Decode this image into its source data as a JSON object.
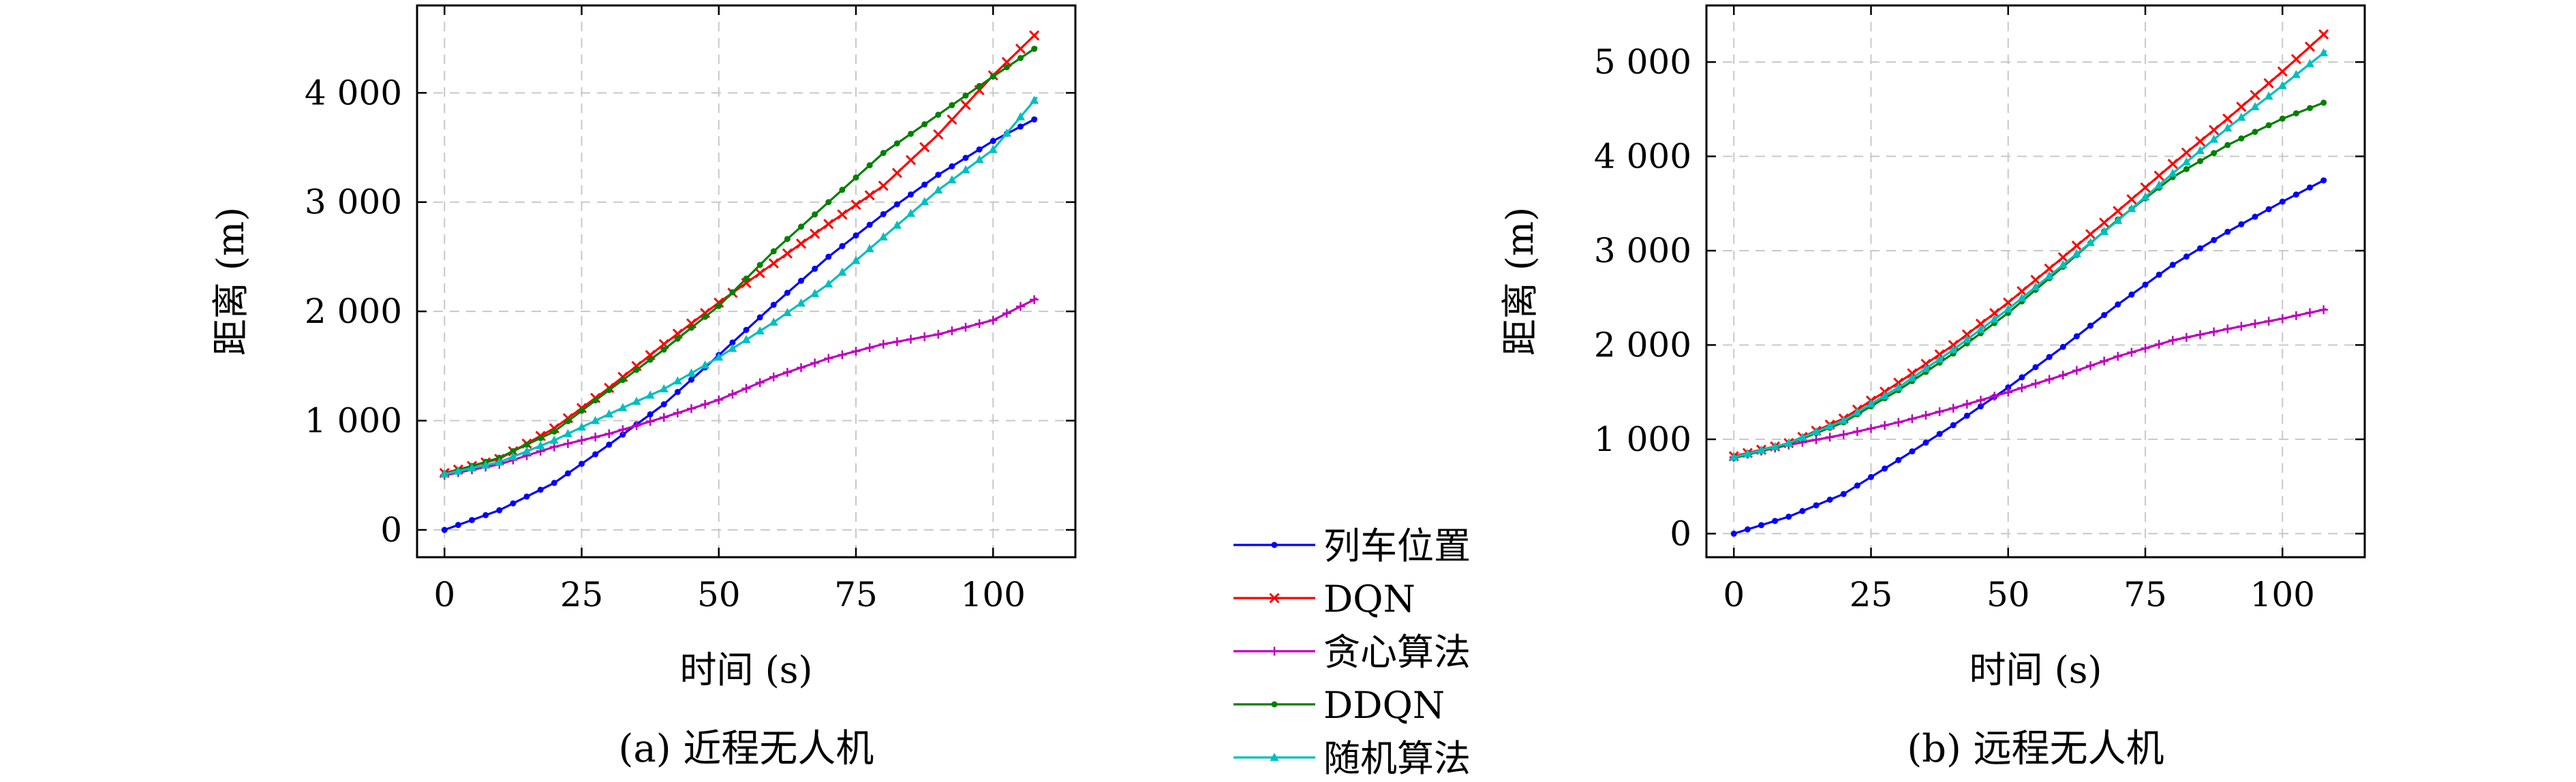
{
  "legend": [
    {
      "name": "列车位置",
      "color": "#0000ff",
      "marker": "dot"
    },
    {
      "name": "DQN",
      "color": "#ff0000",
      "marker": "x"
    },
    {
      "name": "贪心算法",
      "color": "#bf00bf",
      "marker": "plus"
    },
    {
      "name": "DDQN",
      "color": "#008000",
      "marker": "dot"
    },
    {
      "name": "随机算法",
      "color": "#00bfbf",
      "marker": "triangle"
    }
  ],
  "chart_data": [
    {
      "type": "line",
      "caption": "(a) 近程无人机",
      "xlabel": "时间 (s)",
      "ylabel": "距离 (m)",
      "xlim": [
        -5,
        115
      ],
      "ylim": [
        -250,
        4800
      ],
      "xticks": [
        0,
        25,
        50,
        75,
        100
      ],
      "xtick_labels": [
        "0",
        "25",
        "50",
        "75",
        "100"
      ],
      "yticks": [
        0,
        1000,
        2000,
        3000,
        4000
      ],
      "ytick_labels": [
        "0",
        "1 000",
        "2 000",
        "3 000",
        "4 000"
      ],
      "grid": true,
      "series": [
        {
          "name": "列车位置",
          "points": [
            [
              0,
              0
            ],
            [
              10,
              180
            ],
            [
              20,
              430
            ],
            [
              30,
              780
            ],
            [
              40,
              1150
            ],
            [
              50,
              1600
            ],
            [
              60,
              2060
            ],
            [
              70,
              2500
            ],
            [
              80,
              2890
            ],
            [
              90,
              3250
            ],
            [
              100,
              3560
            ],
            [
              108,
              3770
            ]
          ]
        },
        {
          "name": "DQN",
          "points": [
            [
              0,
              520
            ],
            [
              10,
              650
            ],
            [
              20,
              930
            ],
            [
              30,
              1300
            ],
            [
              40,
              1700
            ],
            [
              50,
              2080
            ],
            [
              60,
              2440
            ],
            [
              70,
              2800
            ],
            [
              80,
              3150
            ],
            [
              90,
              3620
            ],
            [
              100,
              4160
            ],
            [
              108,
              4550
            ]
          ]
        },
        {
          "name": "贪心算法",
          "points": [
            [
              0,
              500
            ],
            [
              10,
              600
            ],
            [
              20,
              760
            ],
            [
              30,
              880
            ],
            [
              40,
              1030
            ],
            [
              50,
              1190
            ],
            [
              60,
              1400
            ],
            [
              70,
              1570
            ],
            [
              80,
              1700
            ],
            [
              90,
              1790
            ],
            [
              100,
              1920
            ],
            [
              108,
              2120
            ]
          ]
        },
        {
          "name": "DDQN",
          "points": [
            [
              0,
              510
            ],
            [
              10,
              660
            ],
            [
              20,
              900
            ],
            [
              30,
              1280
            ],
            [
              40,
              1650
            ],
            [
              50,
              2050
            ],
            [
              60,
              2550
            ],
            [
              70,
              3000
            ],
            [
              80,
              3450
            ],
            [
              90,
              3800
            ],
            [
              100,
              4150
            ],
            [
              108,
              4420
            ]
          ]
        },
        {
          "name": "随机算法",
          "points": [
            [
              0,
              510
            ],
            [
              10,
              620
            ],
            [
              20,
              820
            ],
            [
              30,
              1060
            ],
            [
              40,
              1290
            ],
            [
              50,
              1580
            ],
            [
              60,
              1900
            ],
            [
              70,
              2250
            ],
            [
              80,
              2680
            ],
            [
              90,
              3110
            ],
            [
              100,
              3480
            ],
            [
              108,
              3960
            ]
          ]
        }
      ]
    },
    {
      "type": "line",
      "caption": "(b) 远程无人机",
      "xlabel": "时间 (s)",
      "ylabel": "距离 (m)",
      "xlim": [
        -5,
        115
      ],
      "ylim": [
        -250,
        5600
      ],
      "xticks": [
        0,
        25,
        50,
        75,
        100
      ],
      "xtick_labels": [
        "0",
        "25",
        "50",
        "75",
        "100"
      ],
      "yticks": [
        0,
        1000,
        2000,
        3000,
        4000,
        5000
      ],
      "ytick_labels": [
        "0",
        "1 000",
        "2 000",
        "3 000",
        "4 000",
        "5 000"
      ],
      "grid": true,
      "series": [
        {
          "name": "列车位置",
          "points": [
            [
              0,
              0
            ],
            [
              10,
              180
            ],
            [
              20,
              420
            ],
            [
              30,
              780
            ],
            [
              40,
              1150
            ],
            [
              50,
              1550
            ],
            [
              60,
              1980
            ],
            [
              70,
              2430
            ],
            [
              80,
              2850
            ],
            [
              90,
              3200
            ],
            [
              100,
              3520
            ],
            [
              108,
              3760
            ]
          ]
        },
        {
          "name": "DQN",
          "points": [
            [
              0,
              820
            ],
            [
              10,
              960
            ],
            [
              20,
              1220
            ],
            [
              30,
              1600
            ],
            [
              40,
              2000
            ],
            [
              50,
              2450
            ],
            [
              60,
              2930
            ],
            [
              70,
              3420
            ],
            [
              80,
              3920
            ],
            [
              90,
              4400
            ],
            [
              100,
              4900
            ],
            [
              108,
              5320
            ]
          ]
        },
        {
          "name": "贪心算法",
          "points": [
            [
              0,
              810
            ],
            [
              10,
              940
            ],
            [
              20,
              1050
            ],
            [
              30,
              1180
            ],
            [
              40,
              1330
            ],
            [
              50,
              1500
            ],
            [
              60,
              1680
            ],
            [
              70,
              1880
            ],
            [
              80,
              2050
            ],
            [
              90,
              2170
            ],
            [
              100,
              2280
            ],
            [
              108,
              2380
            ]
          ]
        },
        {
          "name": "DDQN",
          "points": [
            [
              0,
              800
            ],
            [
              10,
              950
            ],
            [
              20,
              1180
            ],
            [
              30,
              1520
            ],
            [
              40,
              1910
            ],
            [
              50,
              2340
            ],
            [
              60,
              2830
            ],
            [
              70,
              3330
            ],
            [
              80,
              3780
            ],
            [
              90,
              4120
            ],
            [
              100,
              4400
            ],
            [
              108,
              4580
            ]
          ]
        },
        {
          "name": "随机算法",
          "points": [
            [
              0,
              810
            ],
            [
              10,
              960
            ],
            [
              20,
              1200
            ],
            [
              30,
              1550
            ],
            [
              40,
              1950
            ],
            [
              50,
              2380
            ],
            [
              60,
              2850
            ],
            [
              70,
              3320
            ],
            [
              80,
              3820
            ],
            [
              90,
              4300
            ],
            [
              100,
              4750
            ],
            [
              108,
              5120
            ]
          ]
        }
      ]
    }
  ]
}
